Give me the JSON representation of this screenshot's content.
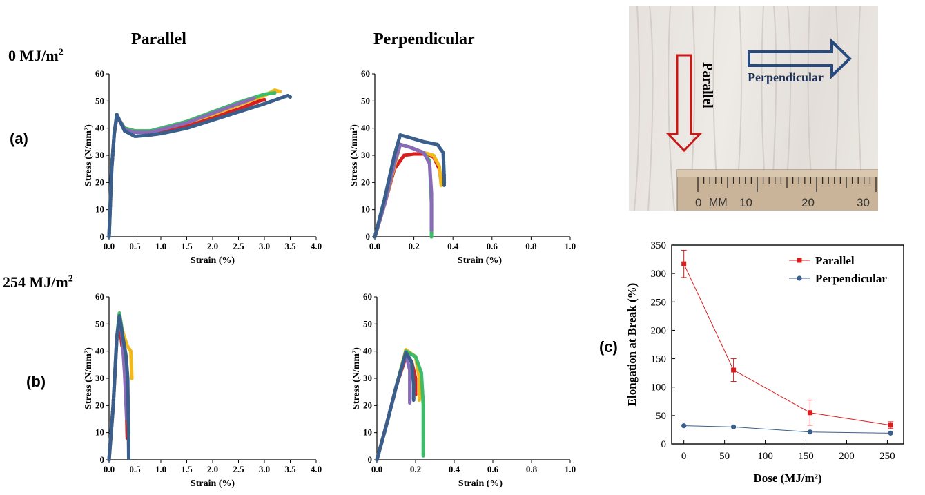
{
  "column_titles": {
    "parallel": "Parallel",
    "perpendicular": "Perpendicular"
  },
  "doses": {
    "top": {
      "value": "0 MJ/m",
      "sup": "2"
    },
    "bottom": {
      "value": "254 MJ/m",
      "sup": "2"
    }
  },
  "panel_labels": {
    "a": "(a)",
    "b": "(b)",
    "c": "(c)"
  },
  "photo": {
    "parallel_label": "Parallel",
    "perpendicular_label": "Perpendicular",
    "ruler_unit": "MM",
    "ruler_ticks": [
      "0",
      "10",
      "20",
      "30"
    ]
  },
  "colors": {
    "red": "#d81e1e",
    "yellow": "#f2b91c",
    "green": "#3dbb68",
    "purple": "#8a6bb8",
    "blue": "#3a5f8c",
    "photo_red": "#c81818",
    "photo_blue": "#274a80"
  },
  "chart_data": [
    {
      "id": "a-parallel",
      "type": "scatter",
      "xlabel": "Strain (%)",
      "ylabel": "Stress (N/mm²)",
      "xlim": [
        0,
        4.0
      ],
      "ylim": [
        0,
        60
      ],
      "xticks": [
        "0.0",
        "0.5",
        "1.0",
        "1.5",
        "2.0",
        "2.5",
        "3.0",
        "3.5",
        "4.0"
      ],
      "yticks": [
        "0",
        "10",
        "20",
        "30",
        "40",
        "50",
        "60"
      ],
      "series": [
        {
          "color": "red",
          "points": [
            [
              0,
              0
            ],
            [
              0.05,
              25
            ],
            [
              0.1,
              38
            ],
            [
              0.15,
              44
            ],
            [
              0.2,
              43
            ],
            [
              0.3,
              40
            ],
            [
              0.5,
              38.5
            ],
            [
              0.8,
              38.5
            ],
            [
              1.0,
              39
            ],
            [
              1.5,
              41
            ],
            [
              2.0,
              44
            ],
            [
              2.5,
              47
            ],
            [
              2.9,
              50
            ],
            [
              3.0,
              50.5
            ]
          ]
        },
        {
          "color": "yellow",
          "points": [
            [
              0,
              0
            ],
            [
              0.05,
              25
            ],
            [
              0.1,
              38
            ],
            [
              0.15,
              45
            ],
            [
              0.2,
              43
            ],
            [
              0.3,
              40
            ],
            [
              0.5,
              39
            ],
            [
              0.8,
              39
            ],
            [
              1.0,
              39.5
            ],
            [
              1.5,
              42
            ],
            [
              2.0,
              45
            ],
            [
              2.5,
              48.5
            ],
            [
              3.0,
              52
            ],
            [
              3.2,
              54
            ],
            [
              3.3,
              53.5
            ]
          ]
        },
        {
          "color": "green",
          "points": [
            [
              0,
              0
            ],
            [
              0.05,
              25
            ],
            [
              0.1,
              38
            ],
            [
              0.15,
              45
            ],
            [
              0.2,
              43
            ],
            [
              0.3,
              40
            ],
            [
              0.5,
              39
            ],
            [
              0.8,
              39
            ],
            [
              1.0,
              40
            ],
            [
              1.5,
              42.5
            ],
            [
              2.0,
              46
            ],
            [
              2.5,
              49.5
            ],
            [
              3.0,
              52.5
            ],
            [
              3.2,
              53
            ]
          ]
        },
        {
          "color": "purple",
          "points": [
            [
              0,
              0
            ],
            [
              0.05,
              25
            ],
            [
              0.1,
              38
            ],
            [
              0.15,
              44.5
            ],
            [
              0.2,
              43
            ],
            [
              0.3,
              39.5
            ],
            [
              0.5,
              38.5
            ],
            [
              0.8,
              38.5
            ],
            [
              1.0,
              39.5
            ],
            [
              1.5,
              42
            ],
            [
              2.0,
              45.5
            ],
            [
              2.5,
              49
            ],
            [
              2.8,
              51
            ]
          ]
        },
        {
          "color": "blue",
          "points": [
            [
              0,
              0
            ],
            [
              0.05,
              25
            ],
            [
              0.1,
              38
            ],
            [
              0.15,
              45
            ],
            [
              0.2,
              43
            ],
            [
              0.3,
              39
            ],
            [
              0.5,
              37
            ],
            [
              0.8,
              37.5
            ],
            [
              1.0,
              38
            ],
            [
              1.5,
              40
            ],
            [
              2.0,
              43
            ],
            [
              2.5,
              46
            ],
            [
              3.0,
              49
            ],
            [
              3.3,
              51
            ],
            [
              3.45,
              52
            ],
            [
              3.5,
              51.5
            ]
          ]
        }
      ]
    },
    {
      "id": "a-perpendicular",
      "type": "scatter",
      "xlabel": "Strain (%)",
      "ylabel": "Stress (N/mm²)",
      "xlim": [
        0,
        1.0
      ],
      "ylim": [
        0,
        60
      ],
      "xticks": [
        "0.0",
        "0.2",
        "0.4",
        "0.6",
        "0.8",
        "1.0"
      ],
      "yticks": [
        "0",
        "10",
        "20",
        "30",
        "40",
        "50",
        "60"
      ],
      "series": [
        {
          "color": "red",
          "points": [
            [
              0,
              0
            ],
            [
              0.05,
              12
            ],
            [
              0.1,
              25
            ],
            [
              0.15,
              30
            ],
            [
              0.2,
              30.5
            ],
            [
              0.25,
              30.5
            ],
            [
              0.3,
              29.5
            ],
            [
              0.33,
              25
            ],
            [
              0.34,
              20
            ]
          ]
        },
        {
          "color": "yellow",
          "points": [
            [
              0,
              0
            ],
            [
              0.05,
              12
            ],
            [
              0.1,
              26
            ],
            [
              0.13,
              34
            ],
            [
              0.18,
              33
            ],
            [
              0.25,
              31
            ],
            [
              0.3,
              30
            ],
            [
              0.33,
              26
            ],
            [
              0.34,
              19
            ]
          ]
        },
        {
          "color": "green",
          "points": [
            [
              0,
              0
            ],
            [
              0.05,
              12
            ],
            [
              0.1,
              27
            ],
            [
              0.13,
              34
            ],
            [
              0.18,
              33
            ],
            [
              0.25,
              31
            ],
            [
              0.28,
              28
            ],
            [
              0.29,
              12
            ],
            [
              0.29,
              0
            ]
          ]
        },
        {
          "color": "purple",
          "points": [
            [
              0,
              0
            ],
            [
              0.05,
              12
            ],
            [
              0.1,
              27
            ],
            [
              0.13,
              34
            ],
            [
              0.18,
              33
            ],
            [
              0.25,
              31
            ],
            [
              0.28,
              27
            ],
            [
              0.29,
              16
            ],
            [
              0.29,
              2.5
            ]
          ]
        },
        {
          "color": "blue",
          "points": [
            [
              0,
              0
            ],
            [
              0.05,
              14
            ],
            [
              0.1,
              30
            ],
            [
              0.13,
              37.5
            ],
            [
              0.18,
              36.5
            ],
            [
              0.25,
              35
            ],
            [
              0.32,
              34
            ],
            [
              0.35,
              31
            ],
            [
              0.355,
              22
            ],
            [
              0.355,
              19
            ]
          ]
        }
      ]
    },
    {
      "id": "b-parallel",
      "type": "scatter",
      "xlabel": "Strain (%)",
      "ylabel": "Stress (N/mm²)",
      "xlim": [
        0,
        4.0
      ],
      "ylim": [
        0,
        60
      ],
      "xticks": [
        "0.0",
        "0.5",
        "1.0",
        "1.5",
        "2.0",
        "2.5",
        "3.0",
        "3.5",
        "4.0"
      ],
      "yticks": [
        "0",
        "10",
        "20",
        "30",
        "40",
        "50",
        "60"
      ],
      "series": [
        {
          "color": "red",
          "points": [
            [
              0,
              0
            ],
            [
              0.08,
              20
            ],
            [
              0.15,
              45
            ],
            [
              0.2,
              50
            ],
            [
              0.25,
              42
            ],
            [
              0.3,
              40
            ],
            [
              0.33,
              25
            ],
            [
              0.35,
              8
            ]
          ]
        },
        {
          "color": "yellow",
          "points": [
            [
              0,
              0
            ],
            [
              0.08,
              20
            ],
            [
              0.15,
              45
            ],
            [
              0.2,
              54
            ],
            [
              0.25,
              48
            ],
            [
              0.35,
              42
            ],
            [
              0.42,
              40
            ],
            [
              0.44,
              30
            ]
          ]
        },
        {
          "color": "green",
          "points": [
            [
              0,
              0
            ],
            [
              0.08,
              20
            ],
            [
              0.15,
              45
            ],
            [
              0.2,
              54
            ],
            [
              0.25,
              48
            ],
            [
              0.3,
              35
            ],
            [
              0.35,
              20
            ],
            [
              0.38,
              10
            ]
          ]
        },
        {
          "color": "purple",
          "points": [
            [
              0,
              0
            ],
            [
              0.08,
              20
            ],
            [
              0.15,
              45
            ],
            [
              0.2,
              52
            ],
            [
              0.25,
              46
            ],
            [
              0.3,
              32
            ],
            [
              0.34,
              15
            ]
          ]
        },
        {
          "color": "blue",
          "points": [
            [
              0,
              0
            ],
            [
              0.08,
              20
            ],
            [
              0.15,
              45
            ],
            [
              0.2,
              53
            ],
            [
              0.25,
              47
            ],
            [
              0.33,
              38
            ],
            [
              0.36,
              30
            ],
            [
              0.37,
              18
            ],
            [
              0.38,
              0.5
            ]
          ]
        }
      ]
    },
    {
      "id": "b-perpendicular",
      "type": "scatter",
      "xlabel": "Strain (%)",
      "ylabel": "Stress (N/mm²)",
      "xlim": [
        0,
        1.0
      ],
      "ylim": [
        0,
        60
      ],
      "xticks": [
        "0.0",
        "0.2",
        "0.4",
        "0.6",
        "0.8",
        "1.0"
      ],
      "yticks": [
        "0",
        "10",
        "20",
        "30",
        "40",
        "50",
        "60"
      ],
      "series": [
        {
          "color": "red",
          "points": [
            [
              0,
              0
            ],
            [
              0.05,
              13
            ],
            [
              0.1,
              27
            ],
            [
              0.15,
              38
            ],
            [
              0.18,
              36
            ],
            [
              0.2,
              30
            ],
            [
              0.2,
              24
            ]
          ]
        },
        {
          "color": "yellow",
          "points": [
            [
              0,
              0
            ],
            [
              0.05,
              13
            ],
            [
              0.1,
              27
            ],
            [
              0.15,
              40.5
            ],
            [
              0.2,
              38
            ],
            [
              0.22,
              30
            ],
            [
              0.22,
              22
            ]
          ]
        },
        {
          "color": "green",
          "points": [
            [
              0,
              0
            ],
            [
              0.05,
              13
            ],
            [
              0.1,
              27
            ],
            [
              0.15,
              40
            ],
            [
              0.2,
              38
            ],
            [
              0.23,
              32
            ],
            [
              0.24,
              20
            ],
            [
              0.24,
              6
            ],
            [
              0.24,
              1.5
            ]
          ]
        },
        {
          "color": "purple",
          "points": [
            [
              0,
              0
            ],
            [
              0.05,
              13
            ],
            [
              0.1,
              27
            ],
            [
              0.15,
              39
            ],
            [
              0.17,
              33
            ],
            [
              0.17,
              25
            ],
            [
              0.17,
              21
            ]
          ]
        },
        {
          "color": "blue",
          "points": [
            [
              0,
              0
            ],
            [
              0.05,
              13
            ],
            [
              0.1,
              27
            ],
            [
              0.15,
              39.5
            ],
            [
              0.18,
              36
            ],
            [
              0.19,
              28
            ],
            [
              0.19,
              22
            ]
          ]
        }
      ]
    },
    {
      "id": "c",
      "type": "line",
      "xlabel": "Dose (MJ/m²)",
      "ylabel": "Elongation at Break (%)",
      "xlim": [
        -15,
        270
      ],
      "ylim": [
        0,
        350
      ],
      "xticks": [
        "0",
        "50",
        "100",
        "150",
        "200",
        "250"
      ],
      "yticks": [
        "0",
        "50",
        "100",
        "150",
        "200",
        "250",
        "300",
        "350"
      ],
      "legend": "top-right",
      "series": [
        {
          "name": "Parallel",
          "color": "red",
          "marker": "square",
          "x": [
            0,
            61,
            155,
            254
          ],
          "y": [
            317,
            130,
            55,
            33
          ],
          "err": [
            24,
            20,
            22,
            6
          ]
        },
        {
          "name": "Perpendicular",
          "color": "blue",
          "marker": "circle",
          "x": [
            0,
            61,
            155,
            254
          ],
          "y": [
            32,
            30,
            21,
            19
          ],
          "err": [
            0,
            0,
            0,
            0
          ]
        }
      ]
    }
  ]
}
